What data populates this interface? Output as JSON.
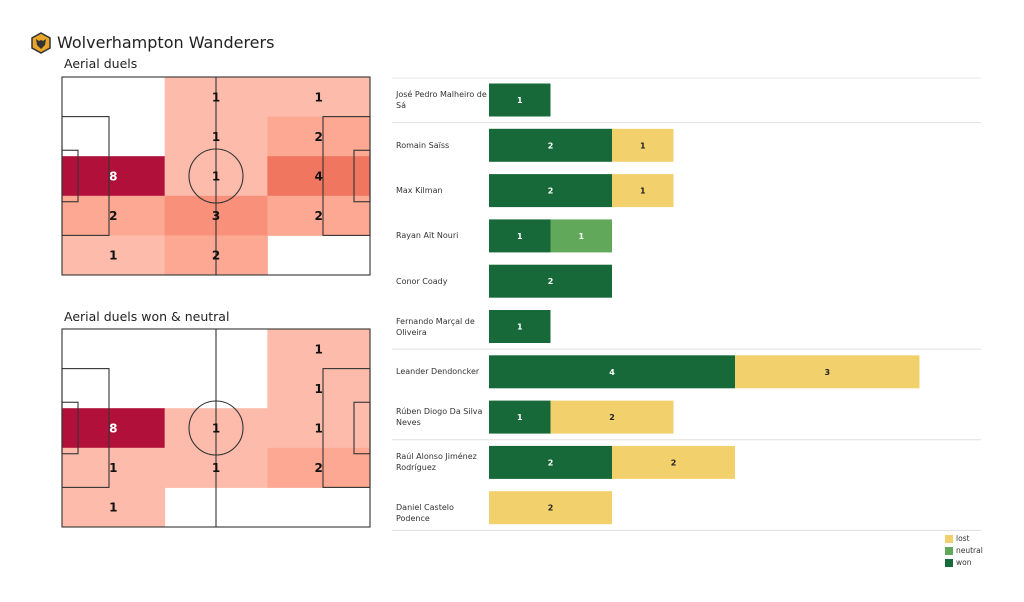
{
  "header": {
    "team": "Wolverhampton Wanderers",
    "logo_icon": "wolves-crest-icon"
  },
  "colors": {
    "won": "#17693a",
    "neutral": "#62a85a",
    "lost": "#f2d16d",
    "heat_max": "#b0103a"
  },
  "chart_data": [
    {
      "type": "heatmap",
      "title": "Aerial duels",
      "grid_rows": 5,
      "grid_cols": 3,
      "values": [
        [
          0,
          1,
          1
        ],
        [
          0,
          1,
          2
        ],
        [
          8,
          1,
          4
        ],
        [
          2,
          3,
          2
        ],
        [
          1,
          2,
          0
        ]
      ],
      "colormap": "Reds"
    },
    {
      "type": "heatmap",
      "title": "Aerial duels won & neutral",
      "grid_rows": 5,
      "grid_cols": 3,
      "values": [
        [
          0,
          0,
          1
        ],
        [
          0,
          0,
          1
        ],
        [
          8,
          1,
          1
        ],
        [
          1,
          1,
          2
        ],
        [
          1,
          0,
          0
        ]
      ],
      "colormap": "Reds"
    },
    {
      "type": "bar",
      "orientation": "horizontal",
      "stacked": true,
      "categories": [
        "José Pedro Malheiro de Sá",
        "Romain Saïss",
        "Max Kilman",
        "Rayan Aït Nouri",
        "Conor  Coady",
        "Fernando Marçal de Oliveira",
        "Leander Dendoncker",
        "Rúben Diogo Da Silva Neves",
        "Raúl Alonso Jiménez Rodríguez",
        "Daniel Castelo Podence"
      ],
      "series": [
        {
          "name": "won",
          "values": [
            1,
            2,
            2,
            1,
            2,
            1,
            4,
            1,
            2,
            0
          ]
        },
        {
          "name": "neutral",
          "values": [
            0,
            0,
            0,
            1,
            0,
            0,
            0,
            0,
            0,
            0
          ]
        },
        {
          "name": "lost",
          "values": [
            0,
            1,
            1,
            0,
            0,
            0,
            3,
            2,
            2,
            2
          ]
        }
      ],
      "group_breaks_after": [
        0,
        5,
        7,
        9
      ],
      "legend": {
        "placement": "bottom-right",
        "entries": [
          "lost",
          "neutral",
          "won"
        ]
      }
    }
  ]
}
